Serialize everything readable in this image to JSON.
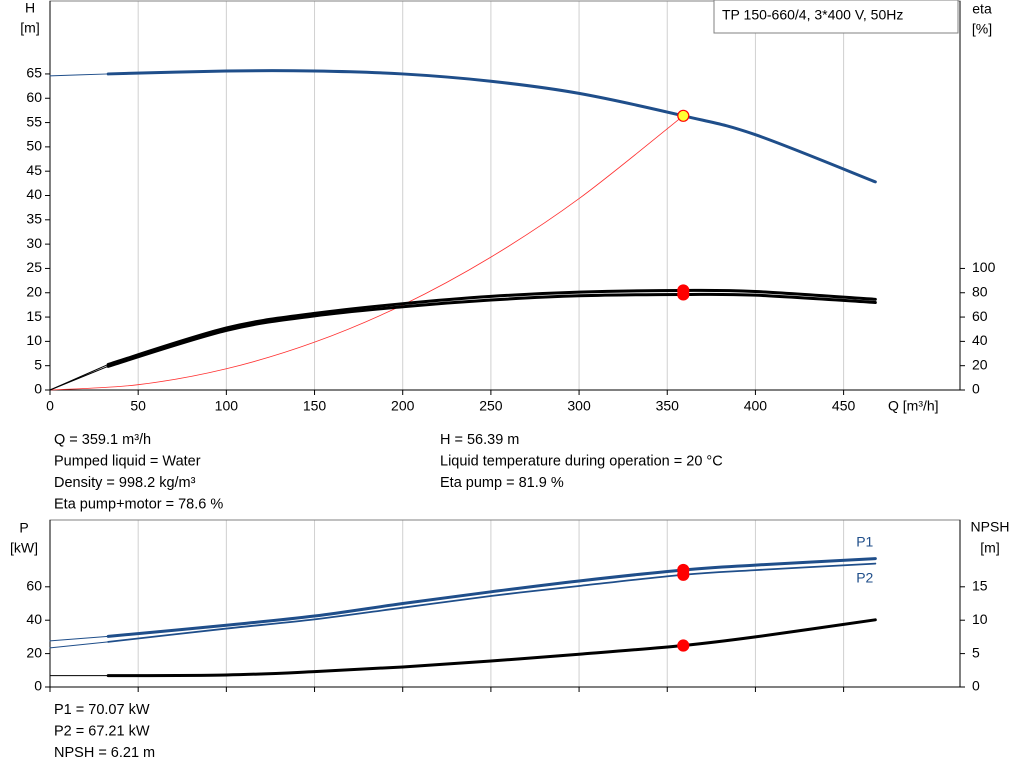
{
  "chart_data": [
    {
      "type": "line",
      "title": "TP 150-660/4, 3*400 V, 50Hz",
      "ylabel": [
        "H",
        "[m]"
      ],
      "y2label": [
        "eta",
        "[%]"
      ],
      "xlabel": "Q [m³/h]",
      "xlim": [
        0,
        516
      ],
      "xticks": [
        0,
        50,
        100,
        150,
        200,
        250,
        300,
        350,
        400,
        450
      ],
      "ylim": [
        0,
        80
      ],
      "yticks": [
        0,
        5,
        10,
        15,
        20,
        25,
        30,
        35,
        40,
        45,
        50,
        55,
        60,
        65
      ],
      "y2lim": [
        0,
        320
      ],
      "y2ticks": [
        0,
        20,
        40,
        60,
        80,
        100
      ],
      "grid": true,
      "series": [
        {
          "color": "#1f4e8a",
          "width": 1,
          "x": [
            0,
            33
          ],
          "values": [
            64.6,
            65
          ]
        },
        {
          "color": "#1f4e8a",
          "width": 3,
          "x": [
            33,
            100,
            150,
            200,
            250,
            300,
            359.1,
            400,
            468
          ],
          "values": [
            65,
            65.6,
            65.6,
            65,
            63.5,
            61,
            56.39,
            52.5,
            42.8
          ]
        },
        {
          "color": "#ff3030",
          "width": 0.8,
          "x": [
            0,
            50,
            100,
            150,
            200,
            250,
            300,
            359.1
          ],
          "values": [
            0,
            1.09,
            4.37,
            9.84,
            17.49,
            27.33,
            39.36,
            56.39
          ]
        },
        {
          "color": "#000000",
          "width": 1,
          "axis": "y2",
          "x": [
            0,
            33
          ],
          "values": [
            0,
            21
          ]
        },
        {
          "color": "#000000",
          "width": 3,
          "axis": "y2",
          "x": [
            33,
            100,
            150,
            200,
            250,
            300,
            359.1,
            400,
            468
          ],
          "values": [
            21,
            51,
            63,
            71,
            77,
            80.5,
            81.9,
            81,
            74.6
          ]
        },
        {
          "color": "#000000",
          "width": 1,
          "axis": "y2",
          "x": [
            0,
            33
          ],
          "values": [
            0,
            19.5
          ]
        },
        {
          "color": "#000000",
          "width": 3,
          "axis": "y2",
          "x": [
            33,
            100,
            150,
            200,
            250,
            300,
            359.1,
            400,
            468
          ],
          "values": [
            19.5,
            49,
            61,
            68.5,
            74,
            77.5,
            78.6,
            78,
            72
          ]
        }
      ],
      "markers": [
        {
          "x": 359.1,
          "y": 56.39,
          "color": "#ffff33"
        },
        {
          "x": 359.1,
          "y": 81.9,
          "color": "#ff0000",
          "axis": "y2"
        },
        {
          "x": 359.1,
          "y": 78.6,
          "color": "#ff0000",
          "axis": "y2"
        }
      ]
    },
    {
      "type": "line",
      "ylabel": [
        "P",
        "[kW]"
      ],
      "y2label": [
        "NPSH",
        "[m]"
      ],
      "xlim": [
        0,
        516
      ],
      "xticks": [
        0,
        50,
        100,
        150,
        200,
        250,
        300,
        350,
        400,
        450
      ],
      "ylim": [
        0,
        100
      ],
      "yticks": [
        0,
        20,
        40,
        60
      ],
      "y2lim": [
        0,
        25
      ],
      "y2ticks": [
        0,
        5,
        10,
        15
      ],
      "grid": true,
      "series": [
        {
          "color": "#1f4e8a",
          "width": 1,
          "x": [
            0,
            33
          ],
          "values": [
            27.6,
            30.3
          ]
        },
        {
          "name": "P1",
          "color": "#1f4e8a",
          "width": 3,
          "x": [
            33,
            100,
            150,
            200,
            250,
            300,
            359.1,
            400,
            468
          ],
          "values": [
            30.3,
            37,
            42.5,
            50,
            57,
            63.5,
            70.07,
            73,
            76.9
          ]
        },
        {
          "color": "#1f4e8a",
          "width": 1,
          "x": [
            0,
            33
          ],
          "values": [
            23.4,
            27
          ]
        },
        {
          "name": "P2",
          "color": "#1f4e8a",
          "width": 1.8,
          "x": [
            33,
            100,
            150,
            200,
            250,
            300,
            359.1,
            400,
            468
          ],
          "values": [
            27,
            35,
            40.5,
            47.5,
            54.5,
            60.5,
            67.21,
            70,
            73.9
          ]
        },
        {
          "color": "#000000",
          "width": 1,
          "axis": "y2",
          "x": [
            0,
            33
          ],
          "values": [
            1.7,
            1.7
          ]
        },
        {
          "color": "#000000",
          "width": 3,
          "axis": "y2",
          "x": [
            33,
            100,
            150,
            200,
            250,
            300,
            359.1,
            400,
            468
          ],
          "values": [
            1.7,
            1.8,
            2.3,
            3,
            3.9,
            4.9,
            6.21,
            7.5,
            10.06
          ]
        }
      ],
      "markers": [
        {
          "x": 359.1,
          "y": 70.07,
          "color": "#ff0000"
        },
        {
          "x": 359.1,
          "y": 67.21,
          "color": "#ff0000"
        },
        {
          "x": 359.1,
          "y": 6.21,
          "color": "#ff0000",
          "axis": "y2"
        }
      ]
    }
  ],
  "operating_info": {
    "left": [
      "Q = 359.1 m³/h",
      "Pumped liquid = Water",
      "Density = 998.2 kg/m³",
      "Eta pump+motor = 78.6 %"
    ],
    "right": [
      "H = 56.39 m",
      "Liquid temperature during operation = 20 °C",
      "Eta pump = 81.9 %"
    ]
  },
  "power_info": [
    "P1 = 70.07 kW",
    "P2 = 67.21 kW",
    "NPSH = 6.21 m"
  ]
}
